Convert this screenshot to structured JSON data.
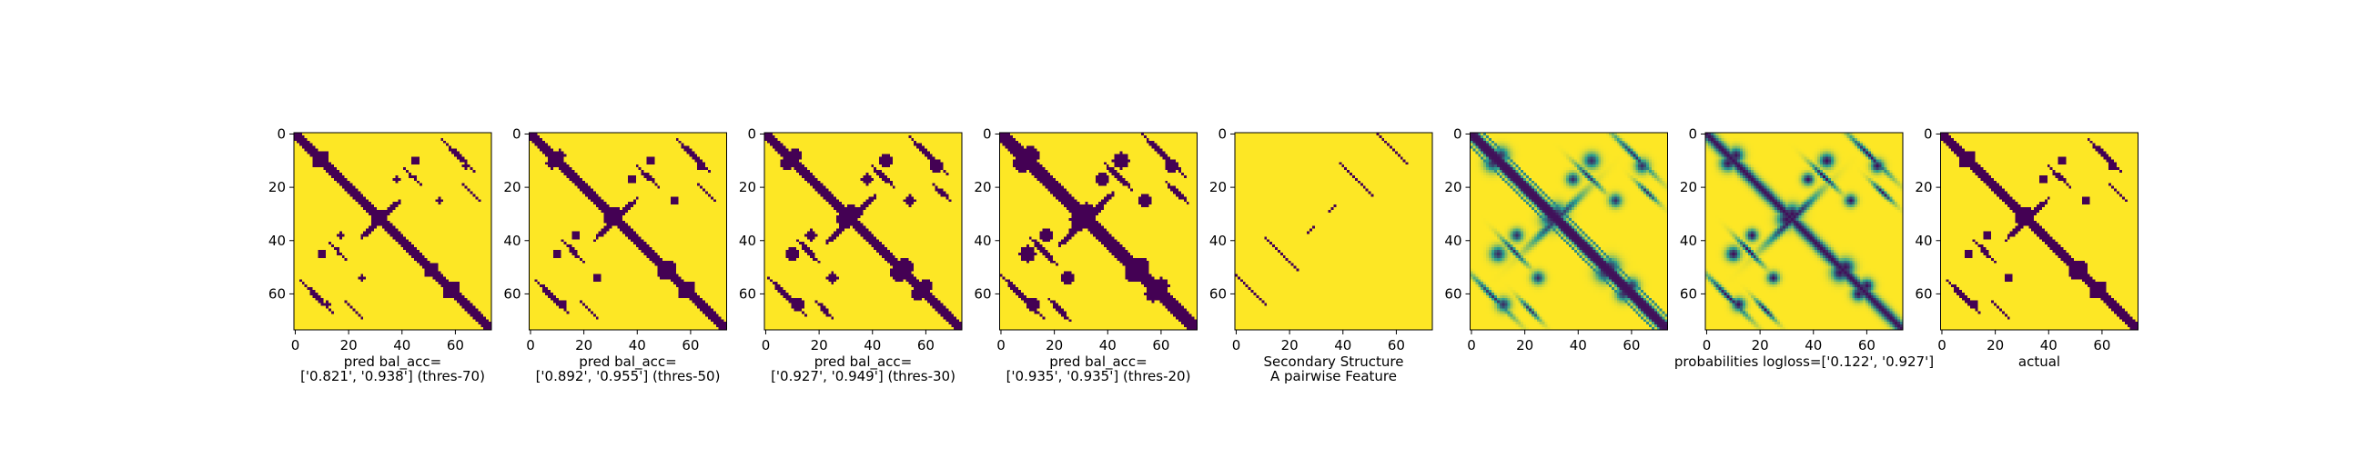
{
  "colors": {
    "low": "#440154",
    "mid": "#2a9d8f",
    "high": "#fde725",
    "frame": "#000000"
  },
  "chart_data": [
    {
      "type": "heatmap",
      "map": "thres70",
      "title": "",
      "caption": [
        "pred bal_acc=",
        "['0.821', '0.938'] (thres-70)"
      ],
      "x_ticks": [
        "0",
        "20",
        "40",
        "60"
      ],
      "y_ticks": [
        "0",
        "20",
        "40",
        "60"
      ],
      "x_tick_values": [
        0,
        20,
        40,
        60
      ],
      "y_tick_values": [
        0,
        20,
        40,
        60
      ],
      "xlim": [
        0,
        74
      ],
      "ylim": [
        0,
        74
      ],
      "grid": false,
      "value_range": [
        0,
        1
      ]
    },
    {
      "type": "heatmap",
      "map": "thres50",
      "title": "",
      "caption": [
        "pred bal_acc=",
        "['0.892', '0.955'] (thres-50)"
      ],
      "x_ticks": [
        "0",
        "20",
        "40",
        "60"
      ],
      "y_ticks": [
        "0",
        "20",
        "40",
        "60"
      ],
      "x_tick_values": [
        0,
        20,
        40,
        60
      ],
      "y_tick_values": [
        0,
        20,
        40,
        60
      ],
      "xlim": [
        0,
        74
      ],
      "ylim": [
        0,
        74
      ],
      "grid": false,
      "value_range": [
        0,
        1
      ]
    },
    {
      "type": "heatmap",
      "map": "thres30",
      "title": "",
      "caption": [
        "pred bal_acc=",
        "['0.927', '0.949'] (thres-30)"
      ],
      "x_ticks": [
        "0",
        "20",
        "40",
        "60"
      ],
      "y_ticks": [
        "0",
        "20",
        "40",
        "60"
      ],
      "x_tick_values": [
        0,
        20,
        40,
        60
      ],
      "y_tick_values": [
        0,
        20,
        40,
        60
      ],
      "xlim": [
        0,
        74
      ],
      "ylim": [
        0,
        74
      ],
      "grid": false,
      "value_range": [
        0,
        1
      ]
    },
    {
      "type": "heatmap",
      "map": "thres20",
      "title": "",
      "caption": [
        "pred bal_acc=",
        "['0.935', '0.935'] (thres-20)"
      ],
      "x_ticks": [
        "0",
        "20",
        "40",
        "60"
      ],
      "y_ticks": [
        "0",
        "20",
        "40",
        "60"
      ],
      "x_tick_values": [
        0,
        20,
        40,
        60
      ],
      "y_tick_values": [
        0,
        20,
        40,
        60
      ],
      "xlim": [
        0,
        74
      ],
      "ylim": [
        0,
        74
      ],
      "grid": false,
      "value_range": [
        0,
        1
      ]
    },
    {
      "type": "heatmap",
      "map": "secondary",
      "title": "",
      "caption": [
        "Secondary Structure",
        "A pairwise Feature"
      ],
      "x_ticks": [
        "0",
        "20",
        "40",
        "60"
      ],
      "y_ticks": [
        "0",
        "20",
        "40",
        "60"
      ],
      "x_tick_values": [
        0,
        20,
        40,
        60
      ],
      "y_tick_values": [
        0,
        20,
        40,
        60
      ],
      "xlim": [
        0,
        74
      ],
      "ylim": [
        0,
        74
      ],
      "grid": false,
      "value_range": [
        0,
        1
      ]
    },
    {
      "type": "heatmap",
      "map": "feature",
      "title": "",
      "caption": [],
      "x_ticks": [
        "0",
        "20",
        "40",
        "60"
      ],
      "y_ticks": [
        "0",
        "20",
        "40",
        "60"
      ],
      "x_tick_values": [
        0,
        20,
        40,
        60
      ],
      "y_tick_values": [
        0,
        20,
        40,
        60
      ],
      "xlim": [
        0,
        74
      ],
      "ylim": [
        0,
        74
      ],
      "grid": false,
      "value_range": [
        0,
        1
      ]
    },
    {
      "type": "heatmap",
      "map": "prob",
      "title": "",
      "caption": [
        "probabilities logloss=['0.122', '0.927']"
      ],
      "x_ticks": [
        "0",
        "20",
        "40",
        "60"
      ],
      "y_ticks": [
        "0",
        "20",
        "40",
        "60"
      ],
      "x_tick_values": [
        0,
        20,
        40,
        60
      ],
      "y_tick_values": [
        0,
        20,
        40,
        60
      ],
      "xlim": [
        0,
        74
      ],
      "ylim": [
        0,
        74
      ],
      "grid": false,
      "value_range": [
        0,
        1
      ]
    },
    {
      "type": "heatmap",
      "map": "actual",
      "title": "",
      "caption": [
        "actual"
      ],
      "x_ticks": [
        "0",
        "20",
        "40",
        "60"
      ],
      "y_ticks": [
        "0",
        "20",
        "40",
        "60"
      ],
      "x_tick_values": [
        0,
        20,
        40,
        60
      ],
      "y_tick_values": [
        0,
        20,
        40,
        60
      ],
      "xlim": [
        0,
        74
      ],
      "ylim": [
        0,
        74
      ],
      "grid": false,
      "value_range": [
        0,
        1
      ]
    }
  ]
}
